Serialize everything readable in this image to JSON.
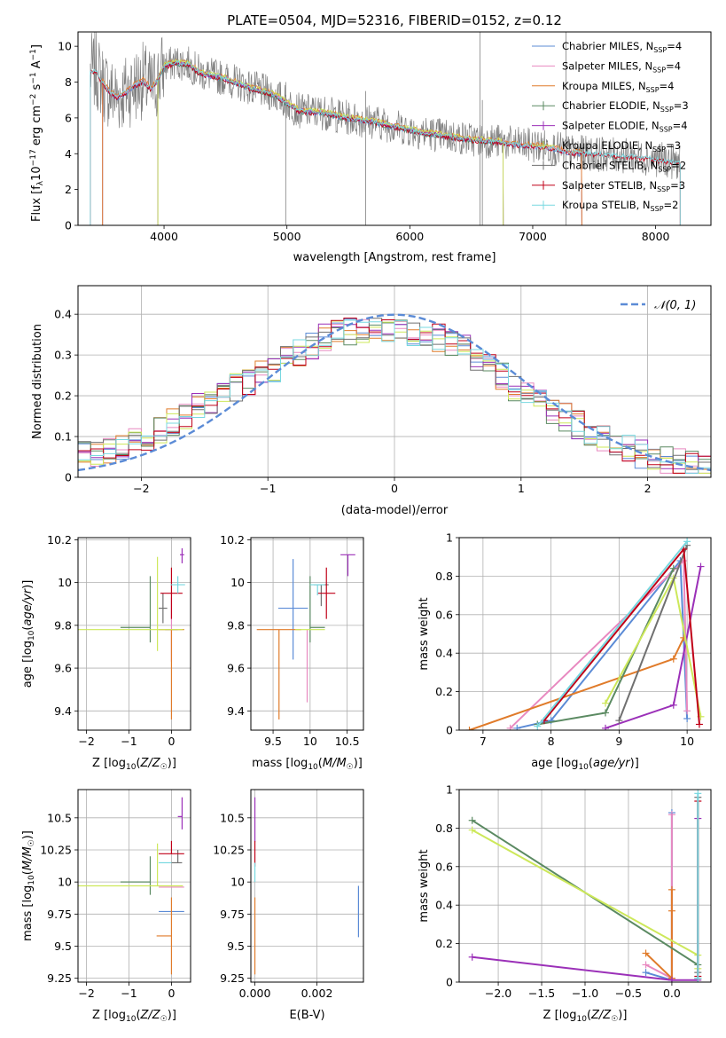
{
  "figure": {
    "title": "PLATE=0504, MJD=52316, FIBERID=0152, z=0.12"
  },
  "colors": {
    "chabrier_miles": "#5b8bd6",
    "salpeter_miles": "#e889c0",
    "kroupa_miles": "#e07b2a",
    "chabrier_elodie": "#5b8a62",
    "salpeter_elodie": "#9b30b8",
    "kroupa_elodie": "#cde85a",
    "chabrier_stelib": "#707070",
    "salpeter_stelib": "#c00018",
    "kroupa_stelib": "#78d8e0",
    "data_spectrum": "#808080",
    "normal_curve": "#5b8bd6"
  },
  "chart_data": [
    {
      "id": "spectrum",
      "type": "line",
      "xlabel": "wavelength [Angstrom, rest frame]",
      "ylabel": "Flux [f_λ 10^-17 erg cm^-2 s^-1 A^-1]",
      "xlim": [
        3300,
        8450
      ],
      "ylim": [
        0,
        10.8
      ],
      "xticks": [
        4000,
        5000,
        6000,
        7000,
        8000
      ],
      "yticks": [
        0,
        2,
        4,
        6,
        8,
        10
      ],
      "legend_position": "upper-right",
      "legend": [
        {
          "label": "Chabrier MILES, N_SSP=4",
          "series": "chabrier_miles"
        },
        {
          "label": "Salpeter MILES, N_SSP=4",
          "series": "salpeter_miles"
        },
        {
          "label": "Kroupa MILES, N_SSP=4",
          "series": "kroupa_miles"
        },
        {
          "label": "Chabrier ELODIE, N_SSP=3",
          "series": "chabrier_elodie"
        },
        {
          "label": "Salpeter ELODIE, N_SSP=4",
          "series": "salpeter_elodie"
        },
        {
          "label": "Kroupa ELODIE, N_SSP=3",
          "series": "kroupa_elodie"
        },
        {
          "label": "Chabrier STELIB, N_SSP=2",
          "series": "chabrier_stelib"
        },
        {
          "label": "Salpeter STELIB, N_SSP=3",
          "series": "salpeter_stelib"
        },
        {
          "label": "Kroupa STELIB, N_SSP=2",
          "series": "kroupa_stelib"
        }
      ],
      "model_continuum": {
        "x": [
          3400,
          3450,
          3500,
          3560,
          3620,
          3680,
          3750,
          3830,
          3900,
          3960,
          4000,
          4100,
          4200,
          4300,
          4500,
          4700,
          4900,
          5100,
          5300,
          5500,
          5700,
          5900,
          6100,
          6300,
          6500,
          6700,
          6900,
          7100,
          7300,
          7500,
          7700,
          7900,
          8100,
          8200
        ],
        "y": [
          8.6,
          8.6,
          8.0,
          7.4,
          7.2,
          7.4,
          7.8,
          8.1,
          7.6,
          8.3,
          8.9,
          9.1,
          9.0,
          8.5,
          8.2,
          7.7,
          7.3,
          6.4,
          6.3,
          6.0,
          5.8,
          5.5,
          5.2,
          5.0,
          4.8,
          4.7,
          4.5,
          4.4,
          4.1,
          4.0,
          3.9,
          3.8,
          3.6,
          3.5
        ]
      },
      "model_range": {
        "miles": [
          3500,
          7400
        ],
        "elodie": [
          3950,
          6760
        ],
        "stelib": [
          3400,
          8200
        ]
      },
      "observed_noise_amplitude": 1.0,
      "emission_spikes": [
        {
          "x": 4990,
          "y": 8.0
        },
        {
          "x": 5640,
          "y": 7.5
        },
        {
          "x": 6570,
          "y": 10.8
        },
        {
          "x": 6590,
          "y": 7.0
        },
        {
          "x": 7270,
          "y": 10.8
        }
      ]
    },
    {
      "id": "residuals",
      "type": "area",
      "xlabel": "(data-model)/error",
      "ylabel": "Normed distribution",
      "xlim": [
        -2.5,
        2.5
      ],
      "ylim": [
        0,
        0.47
      ],
      "xticks": [
        -2,
        -1,
        0,
        1,
        2
      ],
      "yticks": [
        0.0,
        0.1,
        0.2,
        0.3,
        0.4
      ],
      "grid": true,
      "legend_position": "upper-right",
      "legend": [
        {
          "label": "𝒩(0, 1)",
          "series": "normal_curve"
        }
      ],
      "histogram_bin_width": 0.1,
      "histogram_profile": {
        "x": [
          -2.5,
          -2.0,
          -1.5,
          -1.0,
          -0.5,
          0.0,
          0.5,
          1.0,
          1.5,
          2.0,
          2.5
        ],
        "y": [
          0.05,
          0.09,
          0.18,
          0.26,
          0.35,
          0.37,
          0.33,
          0.21,
          0.12,
          0.05,
          0.02
        ]
      },
      "histogram_jitter": 0.035
    },
    {
      "id": "age-vs-Z",
      "type": "scatter",
      "xlabel": "Z [log10(Z/Z☉)]",
      "ylabel": "age [log10(age/yr)]",
      "xlim": [
        -2.2,
        0.45
      ],
      "ylim": [
        9.31,
        10.21
      ],
      "xticks": [
        -2,
        -1,
        0
      ],
      "yticks": [
        9.4,
        9.6,
        9.8,
        10.0,
        10.2
      ],
      "grid": true,
      "points": [
        {
          "series": "chabrier_miles",
          "x": 0.0,
          "y": 9.78,
          "xerr": [
            0.15,
            0.15
          ],
          "yerr": [
            0.0,
            0.0
          ]
        },
        {
          "series": "salpeter_miles",
          "x": 0.0,
          "y": 9.78,
          "xerr": [
            0.0,
            0.0
          ],
          "yerr": [
            0.15,
            0.15
          ]
        },
        {
          "series": "kroupa_miles",
          "x": 0.0,
          "y": 9.78,
          "xerr": [
            0.3,
            0.3
          ],
          "yerr": [
            0.42,
            0.0
          ]
        },
        {
          "series": "chabrier_elodie",
          "x": -0.5,
          "y": 9.79,
          "xerr": [
            0.7,
            0.0
          ],
          "yerr": [
            0.07,
            0.24
          ]
        },
        {
          "series": "salpeter_elodie",
          "x": 0.25,
          "y": 10.13,
          "xerr": [
            0.05,
            0.05
          ],
          "yerr": [
            0.04,
            0.03
          ]
        },
        {
          "series": "kroupa_elodie",
          "x": -0.33,
          "y": 9.78,
          "xerr": [
            1.87,
            0.6
          ],
          "yerr": [
            0.1,
            0.34
          ]
        },
        {
          "series": "chabrier_stelib",
          "x": -0.2,
          "y": 9.88,
          "xerr": [
            0.1,
            0.1
          ],
          "yerr": [
            0.07,
            0.07
          ]
        },
        {
          "series": "salpeter_stelib",
          "x": 0.0,
          "y": 9.95,
          "xerr": [
            0.26,
            0.26
          ],
          "yerr": [
            0.12,
            0.12
          ]
        },
        {
          "series": "kroupa_stelib",
          "x": 0.15,
          "y": 9.99,
          "xerr": [
            0.17,
            0.17
          ],
          "yerr": [
            0.04,
            0.04
          ]
        }
      ]
    },
    {
      "id": "age-vs-mass",
      "type": "scatter",
      "xlabel": "mass [log10(M/M☉)]",
      "ylabel": "",
      "xlim": [
        9.2,
        10.72
      ],
      "ylim": [
        9.31,
        10.21
      ],
      "xticks": [
        9.5,
        10.0,
        10.5
      ],
      "yticks": [
        9.4,
        9.6,
        9.8,
        10.0,
        10.2
      ],
      "grid": true,
      "points": [
        {
          "series": "chabrier_miles",
          "x": 9.77,
          "y": 9.88,
          "xerr": [
            0.2,
            0.2
          ],
          "yerr": [
            0.24,
            0.23
          ]
        },
        {
          "series": "salpeter_miles",
          "x": 9.96,
          "y": 9.78,
          "xerr": [
            0.0,
            0.0
          ],
          "yerr": [
            0.34,
            0.0
          ]
        },
        {
          "series": "kroupa_miles",
          "x": 9.58,
          "y": 9.78,
          "xerr": [
            0.3,
            0.3
          ],
          "yerr": [
            0.42,
            0.0
          ]
        },
        {
          "series": "chabrier_elodie",
          "x": 10.0,
          "y": 9.79,
          "xerr": [
            0.0,
            0.2
          ],
          "yerr": [
            0.07,
            0.24
          ]
        },
        {
          "series": "salpeter_elodie",
          "x": 10.51,
          "y": 10.13,
          "xerr": [
            0.1,
            0.1
          ],
          "yerr": [
            0.1,
            0.0
          ]
        },
        {
          "series": "kroupa_elodie",
          "x": 10.0,
          "y": 9.78,
          "xerr": [
            0.2,
            0.2
          ],
          "yerr": [
            0.0,
            0.0
          ]
        },
        {
          "series": "chabrier_stelib",
          "x": 10.15,
          "y": 9.99,
          "xerr": [
            0.1,
            0.1
          ],
          "yerr": [
            0.1,
            0.0
          ]
        },
        {
          "series": "salpeter_stelib",
          "x": 10.22,
          "y": 9.95,
          "xerr": [
            0.12,
            0.12
          ],
          "yerr": [
            0.12,
            0.12
          ]
        },
        {
          "series": "kroupa_stelib",
          "x": 10.1,
          "y": 9.99,
          "xerr": [
            0.1,
            0.1
          ],
          "yerr": [
            0.05,
            0.0
          ]
        }
      ]
    },
    {
      "id": "mass-weight-vs-age",
      "type": "line",
      "xlabel": "age [log10(age/yr)]",
      "ylabel": "mass weight",
      "xlim": [
        6.65,
        10.35
      ],
      "ylim": [
        0,
        1.0
      ],
      "xticks": [
        7,
        8,
        9,
        10
      ],
      "yticks": [
        0.0,
        0.2,
        0.4,
        0.6,
        0.8,
        1.0
      ],
      "grid": true,
      "series": [
        {
          "key": "chabrier_miles",
          "x": [
            7.5,
            8.0,
            9.9,
            10.0
          ],
          "y": [
            0.01,
            0.05,
            0.88,
            0.06
          ]
        },
        {
          "key": "salpeter_miles",
          "x": [
            7.4,
            9.95,
            10.0
          ],
          "y": [
            0.01,
            0.88,
            0.1
          ]
        },
        {
          "key": "kroupa_miles",
          "x": [
            6.8,
            9.8,
            9.95
          ],
          "y": [
            0.0,
            0.37,
            0.48
          ]
        },
        {
          "key": "chabrier_elodie",
          "x": [
            7.8,
            8.8,
            9.8
          ],
          "y": [
            0.03,
            0.09,
            0.84
          ]
        },
        {
          "key": "salpeter_elodie",
          "x": [
            8.8,
            9.8,
            10.2
          ],
          "y": [
            0.01,
            0.13,
            0.85
          ]
        },
        {
          "key": "kroupa_elodie",
          "x": [
            8.8,
            9.8,
            10.2
          ],
          "y": [
            0.14,
            0.79,
            0.07
          ]
        },
        {
          "key": "chabrier_stelib",
          "x": [
            9.0,
            10.0
          ],
          "y": [
            0.05,
            0.96
          ]
        },
        {
          "key": "salpeter_stelib",
          "x": [
            7.9,
            9.95,
            10.18
          ],
          "y": [
            0.05,
            0.94,
            0.03
          ]
        },
        {
          "key": "kroupa_stelib",
          "x": [
            7.8,
            10.0
          ],
          "y": [
            0.02,
            0.98
          ]
        }
      ]
    },
    {
      "id": "mass-vs-Z",
      "type": "scatter",
      "xlabel": "Z [log10(Z/Z☉)]",
      "ylabel": "mass [log10(M/M☉)]",
      "xlim": [
        -2.2,
        0.45
      ],
      "ylim": [
        9.22,
        10.72
      ],
      "xticks": [
        -2,
        -1,
        0
      ],
      "yticks": [
        9.25,
        9.5,
        9.75,
        10.0,
        10.25,
        10.5
      ],
      "grid": true,
      "points": [
        {
          "series": "chabrier_miles",
          "x": 0.0,
          "y": 9.77,
          "xerr": [
            0.3,
            0.3
          ],
          "yerr": [
            0.0,
            0.0
          ]
        },
        {
          "series": "salpeter_miles",
          "x": 0.0,
          "y": 9.96,
          "xerr": [
            0.3,
            0.3
          ],
          "yerr": [
            0.0,
            0.0
          ]
        },
        {
          "series": "kroupa_miles",
          "x": 0.0,
          "y": 9.58,
          "xerr": [
            0.35,
            0.0
          ],
          "yerr": [
            0.3,
            0.3
          ]
        },
        {
          "series": "chabrier_elodie",
          "x": -0.5,
          "y": 10.0,
          "xerr": [
            0.7,
            0.0
          ],
          "yerr": [
            0.1,
            0.2
          ]
        },
        {
          "series": "salpeter_elodie",
          "x": 0.25,
          "y": 10.51,
          "xerr": [
            0.1,
            0.0
          ],
          "yerr": [
            0.1,
            0.15
          ]
        },
        {
          "series": "kroupa_elodie",
          "x": -0.33,
          "y": 9.97,
          "xerr": [
            1.87,
            0.6
          ],
          "yerr": [
            0.0,
            0.33
          ]
        },
        {
          "series": "chabrier_stelib",
          "x": 0.15,
          "y": 10.15,
          "xerr": [
            0.15,
            0.1
          ],
          "yerr": [
            0.0,
            0.1
          ]
        },
        {
          "series": "salpeter_stelib",
          "x": 0.0,
          "y": 10.22,
          "xerr": [
            0.3,
            0.3
          ],
          "yerr": [
            0.0,
            0.1
          ]
        },
        {
          "series": "kroupa_stelib",
          "x": 0.0,
          "y": 10.15,
          "xerr": [
            0.3,
            0.0
          ],
          "yerr": [
            0.0,
            0.0
          ]
        }
      ]
    },
    {
      "id": "mass-vs-ebv",
      "type": "scatter",
      "xlabel": "E(B-V)",
      "ylabel": "",
      "xlim": [
        -0.00013,
        0.0035
      ],
      "ylim": [
        9.22,
        10.72
      ],
      "xticks": [
        0.0,
        0.002
      ],
      "xticklabels": [
        "0.000",
        "0.002"
      ],
      "yticks": [
        9.25,
        9.5,
        9.75,
        10.0,
        10.25,
        10.5
      ],
      "grid": true,
      "points": [
        {
          "series": "chabrier_miles",
          "x": 0.00334,
          "y": 9.77,
          "xerr": [
            0.0,
            0.0
          ],
          "yerr": [
            0.2,
            0.2
          ]
        },
        {
          "series": "kroupa_miles",
          "x": 0.0,
          "y": 9.58,
          "xerr": [
            0.0,
            0.0
          ],
          "yerr": [
            0.3,
            0.3
          ]
        },
        {
          "series": "salpeter_elodie",
          "x": 0.0,
          "y": 10.51,
          "xerr": [
            0.0,
            0.0
          ],
          "yerr": [
            0.2,
            0.15
          ]
        },
        {
          "series": "salpeter_stelib",
          "x": 0.0,
          "y": 10.22,
          "xerr": [
            0.0,
            0.0
          ],
          "yerr": [
            0.1,
            0.1
          ]
        },
        {
          "series": "kroupa_stelib",
          "x": 0.0,
          "y": 10.15,
          "xerr": [
            0.0,
            0.0
          ],
          "yerr": [
            0.15,
            0.0
          ]
        }
      ]
    },
    {
      "id": "mass-weight-vs-Z",
      "type": "line",
      "xlabel": "Z [log10(Z/Z☉)]",
      "ylabel": "mass weight",
      "xlim": [
        -2.45,
        0.45
      ],
      "ylim": [
        0,
        1.0
      ],
      "xticks": [
        -2.0,
        -1.5,
        -1.0,
        -0.5,
        0.0
      ],
      "xticklabels": [
        "−2.0",
        "−1.5",
        "−1.0",
        "−0.5",
        "0.0"
      ],
      "yticks": [
        0.0,
        0.2,
        0.4,
        0.6,
        0.8,
        1.0
      ],
      "grid": true,
      "series": [
        {
          "key": "chabrier_miles",
          "x": [
            -0.3,
            0.0,
            0.0
          ],
          "y": [
            0.05,
            0.01,
            0.88
          ]
        },
        {
          "key": "salpeter_miles",
          "x": [
            -0.3,
            0.0,
            0.0
          ],
          "y": [
            0.09,
            0.02,
            0.87
          ]
        },
        {
          "key": "kroupa_miles",
          "x": [
            -0.3,
            0.0,
            0.0,
            0.0
          ],
          "y": [
            0.15,
            0.02,
            0.37,
            0.48
          ]
        },
        {
          "key": "chabrier_elodie",
          "x": [
            -2.3,
            0.3,
            0.3
          ],
          "y": [
            0.84,
            0.09,
            0.02
          ]
        },
        {
          "key": "salpeter_elodie",
          "x": [
            -2.3,
            0.0,
            0.3,
            0.3
          ],
          "y": [
            0.13,
            0.01,
            0.01,
            0.85
          ]
        },
        {
          "key": "kroupa_elodie",
          "x": [
            -2.3,
            0.3,
            0.3
          ],
          "y": [
            0.79,
            0.14,
            0.07
          ]
        },
        {
          "key": "chabrier_stelib",
          "x": [
            0.3,
            0.3
          ],
          "y": [
            0.05,
            0.96
          ]
        },
        {
          "key": "salpeter_stelib",
          "x": [
            0.3,
            0.3
          ],
          "y": [
            0.03,
            0.94
          ]
        },
        {
          "key": "kroupa_stelib",
          "x": [
            0.3,
            0.3
          ],
          "y": [
            0.02,
            0.98
          ]
        }
      ]
    }
  ]
}
